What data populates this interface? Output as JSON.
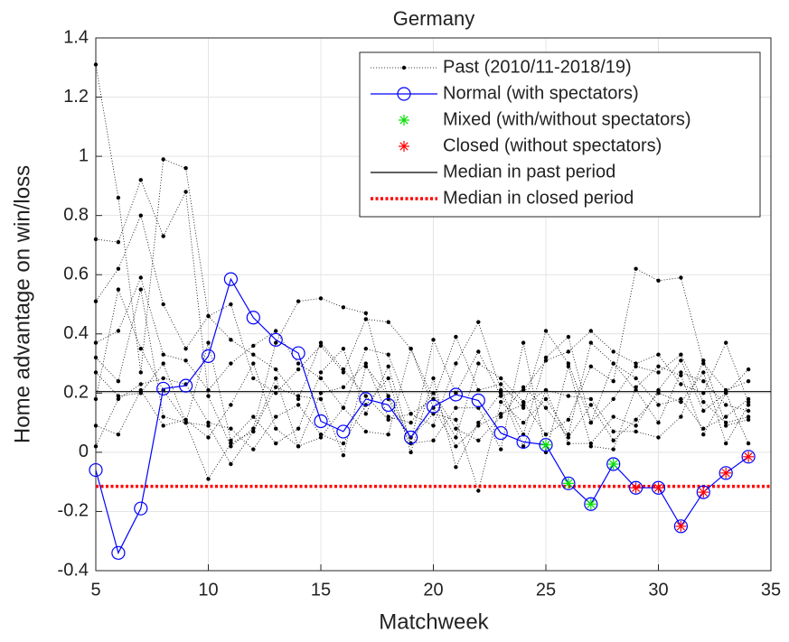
{
  "chart_data": {
    "type": "line",
    "title": "Germany",
    "xlabel": "Matchweek",
    "ylabel": "Home advantage on win/loss",
    "x": [
      5,
      6,
      7,
      8,
      9,
      10,
      11,
      12,
      13,
      14,
      15,
      16,
      17,
      18,
      19,
      20,
      21,
      22,
      23,
      24,
      25,
      26,
      27,
      28,
      29,
      30,
      31,
      32,
      33,
      34
    ],
    "xlim": [
      5,
      35
    ],
    "xticks": [
      5,
      10,
      15,
      20,
      25,
      30,
      35
    ],
    "ylim": [
      -0.4,
      1.4
    ],
    "yticks": [
      -0.4,
      -0.2,
      0,
      0.2,
      0.4,
      0.6,
      0.8,
      1,
      1.2,
      1.4
    ],
    "grid": true,
    "legend": "northeast",
    "past": {
      "name": "Past (2010/11-2018/19)",
      "color": "#000000",
      "seasons": [
        [
          1.31,
          0.86,
          0.27,
          0.99,
          0.96,
          0.46,
          0.38,
          0.33,
          0.28,
          0.18,
          0.37,
          0.28,
          0.19,
          0.11,
          0.13,
          0.18,
          0.05,
          0.3,
          0.25,
          0.17,
          0.06,
          0.11,
          0.29,
          0.24,
          0.62,
          0.58,
          0.59,
          0.3,
          0.21,
          0.24
        ],
        [
          0.72,
          0.71,
          0.92,
          0.73,
          0.88,
          0.19,
          0.02,
          0.08,
          0.37,
          0.51,
          0.52,
          0.49,
          0.47,
          0.18,
          0.03,
          0.38,
          0.2,
          0.34,
          0.19,
          0.21,
          0.31,
          0.34,
          0.41,
          0.34,
          0.3,
          0.33,
          0.23,
          0.2,
          0.37,
          0.17
        ],
        [
          0.51,
          0.62,
          0.8,
          0.5,
          0.35,
          0.46,
          0.5,
          0.25,
          0.2,
          0.28,
          0.36,
          0.27,
          0.45,
          0.44,
          0.35,
          0.18,
          0.39,
          0.21,
          0.23,
          0.15,
          0.41,
          0.3,
          0.1,
          0.3,
          0.21,
          0.1,
          0.27,
          0.24,
          0.16,
          0.14
        ],
        [
          0.37,
          0.41,
          0.59,
          0.33,
          0.31,
          0.21,
          0.3,
          0.36,
          0.41,
          0.3,
          0.25,
          0.15,
          0.35,
          0.33,
          0.13,
          0.09,
          0.3,
          0.44,
          0.21,
          0.06,
          0.32,
          0.39,
          0.1,
          0.18,
          0.29,
          0.27,
          0.33,
          0.17,
          0.1,
          0.12
        ],
        [
          0.32,
          0.24,
          0.55,
          0.12,
          0.1,
          0.09,
          -0.04,
          0.07,
          0.22,
          0.19,
          0.18,
          -0.01,
          0.29,
          0.19,
          0.05,
          0.13,
          0.11,
          -0.13,
          0.17,
          0.1,
          0.18,
          0.06,
          0.37,
          0.3,
          0.25,
          0.16,
          0.18,
          0.08,
          0.12,
          0.18
        ],
        [
          0.27,
          0.19,
          0.2,
          0.3,
          0.1,
          -0.09,
          0.03,
          0.07,
          0.25,
          0.02,
          0.2,
          0.22,
          0.3,
          0.12,
          0.1,
          0.2,
          0.08,
          0.04,
          0.12,
          0.22,
          0.15,
          0.05,
          0.16,
          0.04,
          0.11,
          0.2,
          0.17,
          0.27,
          0.03,
          0.16
        ],
        [
          0.09,
          0.06,
          0.21,
          0.09,
          0.11,
          0.05,
          0.16,
          0.3,
          0.08,
          0.02,
          0.05,
          0.15,
          0.07,
          0.06,
          0.35,
          0.15,
          0.02,
          0.09,
          0.13,
          0.16,
          0.21,
          0.03,
          0.03,
          0.12,
          0.09,
          0.21,
          0.31,
          0.14,
          0.2,
          0.03
        ],
        [
          0.02,
          0.18,
          0.23,
          0.25,
          0.23,
          0.1,
          0.08,
          0.01,
          0.12,
          0.16,
          0.06,
          0.03,
          0.16,
          0.25,
          0.0,
          0.25,
          -0.05,
          0.1,
          0.2,
          0.02,
          0.21,
          0.19,
          0.18,
          0.07,
          0.07,
          0.05,
          0.12,
          0.31,
          0.09,
          0.11
        ],
        [
          0.18,
          0.55,
          0.35,
          0.21,
          0.1,
          0.37,
          0.04,
          0.12,
          0.03,
          0.08,
          0.27,
          0.35,
          0.13,
          0.29,
          0.03,
          0.04,
          0.15,
          0.15,
          0.01,
          0.37,
          0.0,
          0.29,
          0.02,
          0.01,
          0.22,
          0.29,
          0.26,
          0.06,
          0.2,
          0.28
        ]
      ]
    },
    "series": [
      {
        "name": "Normal (with spectators)",
        "color": "#0000ff",
        "values": [
          -0.06,
          -0.34,
          -0.19,
          0.215,
          0.225,
          0.325,
          0.585,
          0.455,
          0.38,
          0.335,
          0.105,
          0.07,
          0.18,
          0.16,
          0.05,
          0.155,
          0.195,
          0.175,
          0.065,
          0.035,
          0.025,
          -0.105,
          -0.175,
          -0.04,
          -0.12,
          -0.12,
          -0.25,
          -0.135,
          -0.07,
          -0.015
        ]
      },
      {
        "name": "Mixed (with/without spectators)",
        "color": "#00e000",
        "x": [
          25,
          26,
          27,
          28
        ],
        "values": [
          0.025,
          -0.105,
          -0.175,
          -0.04
        ]
      },
      {
        "name": "Closed (without spectators)",
        "color": "#ff0000",
        "x": [
          29,
          30,
          31,
          32,
          33,
          34
        ],
        "values": [
          -0.12,
          -0.12,
          -0.25,
          -0.135,
          -0.07,
          -0.015
        ]
      }
    ],
    "medians": [
      {
        "name": "Median in past period",
        "color": "#000000",
        "value": 0.205
      },
      {
        "name": "Median in closed period",
        "color": "#ff0000",
        "value": -0.115
      }
    ]
  }
}
